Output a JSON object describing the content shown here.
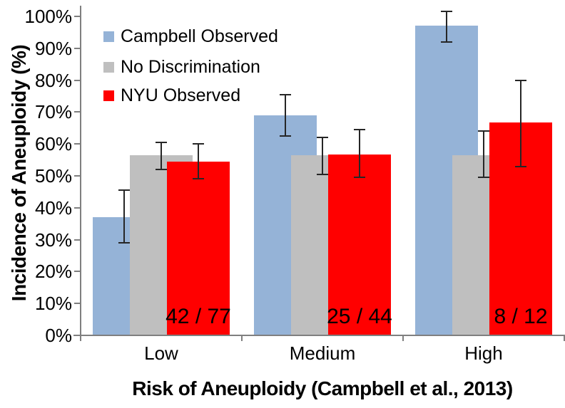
{
  "chart_data": {
    "type": "bar",
    "title": "",
    "xlabel": "Risk of Aneuploidy (Campbell et al., 2013)",
    "ylabel": "Incidence of Aneuploidy (%)",
    "categories": [
      "Low",
      "Medium",
      "High"
    ],
    "y_tick_labels": [
      "0%",
      "10%",
      "20%",
      "30%",
      "40%",
      "50%",
      "60%",
      "70%",
      "80%",
      "90%",
      "100%"
    ],
    "ylim": [
      0,
      100
    ],
    "grid": false,
    "legend_position": "top-left-inside",
    "series": [
      {
        "name": "Campbell Observed",
        "color": "#95B3D7",
        "values": [
          37,
          69,
          97
        ],
        "error_low": [
          29,
          62.5,
          92
        ],
        "error_high": [
          45.5,
          75.5,
          101.5
        ]
      },
      {
        "name": "No Discrimination",
        "color": "#BFBFBF",
        "values": [
          56.4,
          56.4,
          56.4
        ],
        "error_low": [
          52,
          50.5,
          49.5
        ],
        "error_high": [
          60.5,
          62,
          64
        ]
      },
      {
        "name": "NYU Observed",
        "color": "#FF0000",
        "values": [
          54.5,
          56.8,
          66.7
        ],
        "error_low": [
          49,
          49.5,
          53
        ],
        "error_high": [
          60,
          64.5,
          80
        ]
      }
    ],
    "bar_labels": {
      "series": "NYU Observed",
      "values": [
        "42 / 77",
        "25 / 44",
        "8 / 12"
      ]
    },
    "error_bar_color": "#262626",
    "axis_color": "#7f7f7f"
  }
}
